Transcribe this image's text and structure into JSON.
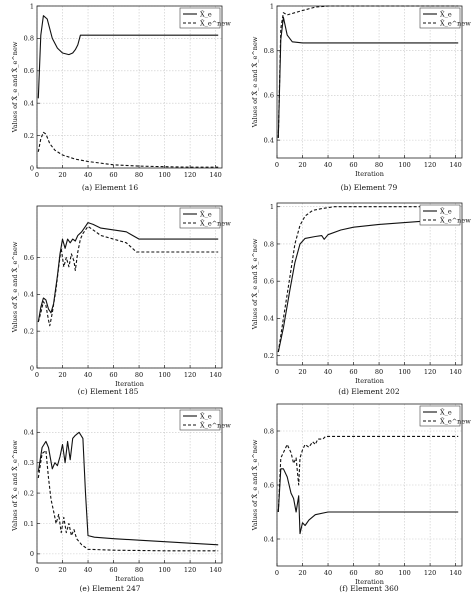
{
  "figure": {
    "legend_x": "X̂_e",
    "legend_y": "X̂_e^new",
    "ylabel": "Values of X̂_e and X̂_e^new",
    "xlabel": "Iteration"
  },
  "chart_data": [
    {
      "type": "line",
      "caption": "(a) Element 16",
      "xlabel": "",
      "ylabel": "Values of X̂_e and X̂_e^new",
      "xlim": [
        0,
        145
      ],
      "ylim": [
        0,
        1
      ],
      "xticks": [
        0,
        20,
        40,
        60,
        80,
        100,
        120,
        140
      ],
      "yticks": [
        0,
        0.2,
        0.4,
        0.6,
        0.8,
        1
      ],
      "grid": true,
      "legend_position": "top-right",
      "series": [
        {
          "name": "X̂_e",
          "style": "solid",
          "points": [
            [
              1,
              0.43
            ],
            [
              3,
              0.82
            ],
            [
              5,
              0.94
            ],
            [
              8,
              0.92
            ],
            [
              12,
              0.8
            ],
            [
              16,
              0.74
            ],
            [
              20,
              0.71
            ],
            [
              25,
              0.7
            ],
            [
              28,
              0.71
            ],
            [
              30,
              0.73
            ],
            [
              32,
              0.76
            ],
            [
              34,
              0.82
            ],
            [
              60,
              0.82
            ],
            [
              100,
              0.82
            ],
            [
              142,
              0.82
            ]
          ]
        },
        {
          "name": "X̂_e^new",
          "style": "dashed",
          "points": [
            [
              1,
              0.1
            ],
            [
              3,
              0.18
            ],
            [
              5,
              0.22
            ],
            [
              7,
              0.21
            ],
            [
              10,
              0.15
            ],
            [
              14,
              0.11
            ],
            [
              20,
              0.08
            ],
            [
              30,
              0.055
            ],
            [
              40,
              0.04
            ],
            [
              60,
              0.02
            ],
            [
              80,
              0.012
            ],
            [
              100,
              0.008
            ],
            [
              120,
              0.005
            ],
            [
              142,
              0.005
            ]
          ]
        }
      ]
    },
    {
      "type": "line",
      "caption": "(b) Element 79",
      "xlabel": "Iteration",
      "ylabel": "Values of X̂_e and X̂_e^new",
      "xlim": [
        0,
        145
      ],
      "ylim": [
        0.32,
        1
      ],
      "xticks": [
        0,
        20,
        40,
        60,
        80,
        100,
        120,
        140
      ],
      "yticks": [
        0.4,
        0.6,
        0.8,
        1
      ],
      "grid": true,
      "legend_position": "top-right",
      "series": [
        {
          "name": "X̂_e",
          "style": "solid",
          "points": [
            [
              1,
              0.41
            ],
            [
              3,
              0.85
            ],
            [
              5,
              0.95
            ],
            [
              8,
              0.87
            ],
            [
              12,
              0.84
            ],
            [
              20,
              0.835
            ],
            [
              40,
              0.835
            ],
            [
              80,
              0.835
            ],
            [
              142,
              0.835
            ]
          ]
        },
        {
          "name": "X̂_e^new",
          "style": "dashed",
          "points": [
            [
              1,
              0.41
            ],
            [
              3,
              0.9
            ],
            [
              5,
              0.97
            ],
            [
              8,
              0.96
            ],
            [
              14,
              0.97
            ],
            [
              20,
              0.98
            ],
            [
              30,
              0.995
            ],
            [
              40,
              1.0
            ],
            [
              80,
              1.0
            ],
            [
              142,
              1.0
            ]
          ]
        }
      ]
    },
    {
      "type": "line",
      "caption": "(c) Element 185",
      "xlabel": "Iteration",
      "ylabel": "Values of X̂_e and X̂_e^new",
      "xlim": [
        0,
        145
      ],
      "ylim": [
        0,
        0.88
      ],
      "xticks": [
        0,
        20,
        40,
        60,
        80,
        100,
        120,
        140
      ],
      "yticks": [
        0,
        0.2,
        0.4,
        0.6
      ],
      "grid": true,
      "legend_position": "top-right",
      "series": [
        {
          "name": "X̂_e",
          "style": "solid",
          "points": [
            [
              1,
              0.25
            ],
            [
              3,
              0.33
            ],
            [
              5,
              0.38
            ],
            [
              7,
              0.37
            ],
            [
              9,
              0.32
            ],
            [
              11,
              0.3
            ],
            [
              13,
              0.35
            ],
            [
              16,
              0.5
            ],
            [
              18,
              0.62
            ],
            [
              20,
              0.7
            ],
            [
              22,
              0.65
            ],
            [
              24,
              0.7
            ],
            [
              26,
              0.68
            ],
            [
              28,
              0.7
            ],
            [
              30,
              0.69
            ],
            [
              32,
              0.72
            ],
            [
              35,
              0.74
            ],
            [
              38,
              0.77
            ],
            [
              40,
              0.79
            ],
            [
              44,
              0.78
            ],
            [
              50,
              0.76
            ],
            [
              60,
              0.75
            ],
            [
              70,
              0.74
            ],
            [
              75,
              0.72
            ],
            [
              80,
              0.7
            ],
            [
              100,
              0.7
            ],
            [
              142,
              0.7
            ]
          ]
        },
        {
          "name": "X̂_e^new",
          "style": "dashed",
          "points": [
            [
              1,
              0.25
            ],
            [
              3,
              0.3
            ],
            [
              5,
              0.36
            ],
            [
              7,
              0.34
            ],
            [
              9,
              0.26
            ],
            [
              10,
              0.23
            ],
            [
              12,
              0.3
            ],
            [
              15,
              0.43
            ],
            [
              17,
              0.55
            ],
            [
              19,
              0.65
            ],
            [
              21,
              0.55
            ],
            [
              23,
              0.6
            ],
            [
              25,
              0.55
            ],
            [
              27,
              0.62
            ],
            [
              29,
              0.58
            ],
            [
              30,
              0.53
            ],
            [
              32,
              0.63
            ],
            [
              34,
              0.7
            ],
            [
              36,
              0.73
            ],
            [
              38,
              0.75
            ],
            [
              40,
              0.77
            ],
            [
              44,
              0.75
            ],
            [
              50,
              0.72
            ],
            [
              60,
              0.7
            ],
            [
              70,
              0.68
            ],
            [
              78,
              0.63
            ],
            [
              100,
              0.63
            ],
            [
              142,
              0.63
            ]
          ]
        }
      ]
    },
    {
      "type": "line",
      "caption": "(d) Element 202",
      "xlabel": "Iteration",
      "ylabel": "Values of X̂_e and X̂_e^new",
      "xlim": [
        0,
        145
      ],
      "ylim": [
        0.15,
        1.02
      ],
      "xticks": [
        0,
        20,
        40,
        60,
        80,
        100,
        120,
        140
      ],
      "yticks": [
        0.2,
        0.4,
        0.6,
        0.8,
        1
      ],
      "grid": true,
      "legend_position": "top-right",
      "series": [
        {
          "name": "X̂_e",
          "style": "solid",
          "points": [
            [
              1,
              0.22
            ],
            [
              5,
              0.35
            ],
            [
              10,
              0.55
            ],
            [
              14,
              0.7
            ],
            [
              18,
              0.8
            ],
            [
              22,
              0.83
            ],
            [
              30,
              0.84
            ],
            [
              35,
              0.845
            ],
            [
              37,
              0.825
            ],
            [
              40,
              0.85
            ],
            [
              50,
              0.875
            ],
            [
              60,
              0.89
            ],
            [
              80,
              0.905
            ],
            [
              100,
              0.915
            ],
            [
              120,
              0.925
            ],
            [
              142,
              0.94
            ]
          ]
        },
        {
          "name": "X̂_e^new",
          "style": "dashed",
          "points": [
            [
              1,
              0.22
            ],
            [
              5,
              0.4
            ],
            [
              10,
              0.62
            ],
            [
              14,
              0.8
            ],
            [
              18,
              0.9
            ],
            [
              22,
              0.95
            ],
            [
              28,
              0.98
            ],
            [
              35,
              0.99
            ],
            [
              45,
              1.0
            ],
            [
              80,
              1.0
            ],
            [
              142,
              1.0
            ]
          ]
        }
      ]
    },
    {
      "type": "line",
      "caption": "(e) Element 247",
      "xlabel": "Iteration",
      "ylabel": "Values of X̂_e and X̂_e^new",
      "xlim": [
        0,
        145
      ],
      "ylim": [
        -0.03,
        0.48
      ],
      "xticks": [
        0,
        20,
        40,
        60,
        80,
        100,
        120,
        140
      ],
      "yticks": [
        0,
        0.1,
        0.2,
        0.3,
        0.4
      ],
      "grid": true,
      "legend_position": "top-right",
      "series": [
        {
          "name": "X̂_e",
          "style": "solid",
          "points": [
            [
              1,
              0.27
            ],
            [
              4,
              0.35
            ],
            [
              7,
              0.37
            ],
            [
              9,
              0.35
            ],
            [
              12,
              0.28
            ],
            [
              14,
              0.3
            ],
            [
              16,
              0.29
            ],
            [
              18,
              0.32
            ],
            [
              20,
              0.36
            ],
            [
              22,
              0.3
            ],
            [
              24,
              0.37
            ],
            [
              26,
              0.31
            ],
            [
              28,
              0.38
            ],
            [
              30,
              0.39
            ],
            [
              33,
              0.4
            ],
            [
              36,
              0.38
            ],
            [
              38,
              0.2
            ],
            [
              40,
              0.06
            ],
            [
              45,
              0.055
            ],
            [
              60,
              0.05
            ],
            [
              80,
              0.045
            ],
            [
              100,
              0.04
            ],
            [
              120,
              0.035
            ],
            [
              142,
              0.03
            ]
          ]
        },
        {
          "name": "X̂_e^new",
          "style": "dashed",
          "points": [
            [
              1,
              0.25
            ],
            [
              4,
              0.33
            ],
            [
              7,
              0.34
            ],
            [
              9,
              0.25
            ],
            [
              11,
              0.18
            ],
            [
              13,
              0.14
            ],
            [
              15,
              0.1
            ],
            [
              17,
              0.13
            ],
            [
              19,
              0.07
            ],
            [
              21,
              0.12
            ],
            [
              23,
              0.07
            ],
            [
              25,
              0.1
            ],
            [
              27,
              0.06
            ],
            [
              29,
              0.08
            ],
            [
              31,
              0.05
            ],
            [
              35,
              0.03
            ],
            [
              40,
              0.015
            ],
            [
              60,
              0.012
            ],
            [
              100,
              0.01
            ],
            [
              142,
              0.01
            ]
          ]
        }
      ]
    },
    {
      "type": "line",
      "caption": "(f) Element 360",
      "xlabel": "Iteration",
      "ylabel": "Values of X̂_e and X̂_e^new",
      "xlim": [
        0,
        145
      ],
      "ylim": [
        0.3,
        0.9
      ],
      "xticks": [
        0,
        20,
        40,
        60,
        80,
        100,
        120,
        140
      ],
      "yticks": [
        0.4,
        0.6,
        0.8
      ],
      "grid": true,
      "legend_position": "top-right",
      "series": [
        {
          "name": "X̂_e",
          "style": "solid",
          "points": [
            [
              1,
              0.5
            ],
            [
              3,
              0.66
            ],
            [
              5,
              0.66
            ],
            [
              8,
              0.63
            ],
            [
              11,
              0.57
            ],
            [
              13,
              0.55
            ],
            [
              15,
              0.5
            ],
            [
              17,
              0.56
            ],
            [
              18,
              0.42
            ],
            [
              20,
              0.46
            ],
            [
              22,
              0.45
            ],
            [
              25,
              0.47
            ],
            [
              30,
              0.49
            ],
            [
              40,
              0.5
            ],
            [
              60,
              0.5
            ],
            [
              100,
              0.5
            ],
            [
              142,
              0.5
            ]
          ]
        },
        {
          "name": "X̂_e^new",
          "style": "dashed",
          "points": [
            [
              1,
              0.5
            ],
            [
              3,
              0.7
            ],
            [
              5,
              0.72
            ],
            [
              8,
              0.75
            ],
            [
              11,
              0.72
            ],
            [
              13,
              0.68
            ],
            [
              15,
              0.7
            ],
            [
              17,
              0.6
            ],
            [
              18,
              0.7
            ],
            [
              20,
              0.73
            ],
            [
              22,
              0.75
            ],
            [
              25,
              0.74
            ],
            [
              28,
              0.76
            ],
            [
              30,
              0.75
            ],
            [
              32,
              0.77
            ],
            [
              36,
              0.77
            ],
            [
              38,
              0.78
            ],
            [
              50,
              0.78
            ],
            [
              100,
              0.78
            ],
            [
              142,
              0.78
            ]
          ]
        }
      ]
    }
  ]
}
